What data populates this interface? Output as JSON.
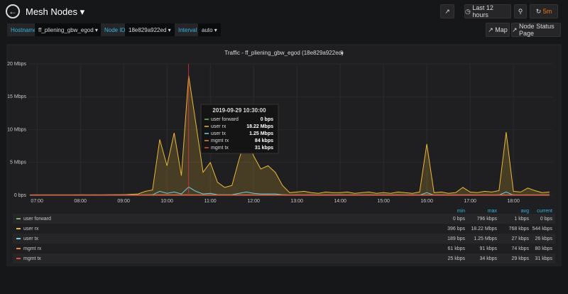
{
  "header": {
    "title": "Mesh Nodes",
    "time_range": "Last 12 hours",
    "refresh": "5m"
  },
  "variables": [
    {
      "label": "Hostname",
      "value": "ff_pliening_gbw_egod"
    },
    {
      "label": "Node ID",
      "value": "18e829a922ed"
    },
    {
      "label": "Interval",
      "value": "auto"
    }
  ],
  "links": [
    "Map",
    "Node Status Page"
  ],
  "chart_data": {
    "type": "line",
    "title": "Traffic - ff_pliening_gbw_egod (18e829a922ed)",
    "x": [
      "06:50",
      "07:00",
      "07:10",
      "07:20",
      "07:30",
      "07:40",
      "07:50",
      "08:00",
      "08:10",
      "08:20",
      "08:30",
      "08:40",
      "08:50",
      "09:00",
      "09:10",
      "09:20",
      "09:30",
      "09:40",
      "09:50",
      "10:00",
      "10:10",
      "10:20",
      "10:30",
      "10:40",
      "10:50",
      "11:00",
      "11:10",
      "11:20",
      "11:30",
      "11:40",
      "11:50",
      "12:00",
      "12:10",
      "12:20",
      "12:30",
      "12:40",
      "12:50",
      "13:00",
      "13:10",
      "13:20",
      "13:30",
      "13:40",
      "13:50",
      "14:00",
      "14:10",
      "14:20",
      "14:30",
      "14:40",
      "14:50",
      "15:00",
      "15:10",
      "15:20",
      "15:30",
      "15:40",
      "15:50",
      "16:00",
      "16:10",
      "16:20",
      "16:30",
      "16:40",
      "16:50",
      "17:00",
      "17:10",
      "17:20",
      "17:30",
      "17:40",
      "17:50",
      "18:00",
      "18:10",
      "18:20",
      "18:30",
      "18:40",
      "18:50"
    ],
    "xlim": [
      "06:48",
      "18:54"
    ],
    "xticks": [
      "07:00",
      "08:00",
      "09:00",
      "10:00",
      "11:00",
      "12:00",
      "13:00",
      "14:00",
      "15:00",
      "16:00",
      "17:00",
      "18:00"
    ],
    "ylim": [
      0,
      20
    ],
    "yticks": [
      {
        "value": 0,
        "label": "0 bps"
      },
      {
        "value": 5,
        "label": "5 Mbps"
      },
      {
        "value": 10,
        "label": "10 Mbps"
      },
      {
        "value": 15,
        "label": "15 Mbps"
      },
      {
        "value": 20,
        "label": "20 Mbps"
      }
    ],
    "grid": true,
    "legend_columns": [
      "min",
      "max",
      "avg",
      "current"
    ],
    "series": [
      {
        "name": "user forward",
        "color": "#7eb26d",
        "values": [
          0,
          0,
          0,
          0,
          0,
          0,
          0,
          0,
          0,
          0,
          0,
          0,
          0,
          0,
          0,
          0,
          0,
          0,
          0,
          0,
          0,
          0,
          0,
          0,
          0,
          0,
          0,
          0,
          0,
          0,
          0,
          0,
          0,
          0,
          0,
          0,
          0,
          0,
          0,
          0,
          0,
          0,
          0,
          0,
          0,
          0,
          0,
          0,
          0,
          0,
          0,
          0,
          0,
          0,
          0,
          0,
          0,
          0,
          0,
          0,
          0,
          0,
          0,
          0,
          0,
          0,
          0,
          0,
          0,
          0,
          0,
          0,
          0
        ],
        "stats": {
          "min": "0 bps",
          "max": "796 kbps",
          "avg": "1 kbps",
          "current": "0 bps"
        }
      },
      {
        "name": "user rx",
        "color": "#eab839",
        "values": [
          0.05,
          0.05,
          0.06,
          0.05,
          0.06,
          0.05,
          0.06,
          0.06,
          0.07,
          0.06,
          0.07,
          0.08,
          0.1,
          0.1,
          0.15,
          0.2,
          0.6,
          0.8,
          8.5,
          4.5,
          9.5,
          3,
          18.22,
          11,
          3.5,
          5,
          2,
          1.2,
          1.5,
          5.5,
          9,
          6,
          4,
          4.5,
          3.5,
          1.5,
          0.4,
          0.5,
          0.6,
          0.4,
          0.3,
          0.5,
          0.4,
          0.4,
          0.5,
          0.3,
          0.4,
          0.5,
          0.3,
          0.4,
          0.3,
          0.5,
          0.4,
          0.3,
          0.5,
          7.8,
          0.4,
          0.5,
          0.3,
          0.4,
          1.2,
          0.5,
          0.4,
          0.6,
          0.5,
          0.7,
          9.6,
          0.6,
          0.5,
          1.1,
          0.7,
          0.4,
          0.5
        ],
        "fill": true,
        "stats": {
          "min": "396 bps",
          "max": "18.22 Mbps",
          "avg": "768 kbps",
          "current": "544 kbps"
        }
      },
      {
        "name": "user tx",
        "color": "#6ed0e0",
        "values": [
          0.02,
          0.02,
          0.02,
          0.02,
          0.02,
          0.02,
          0.02,
          0.02,
          0.02,
          0.02,
          0.02,
          0.02,
          0.02,
          0.02,
          0.03,
          0.04,
          0.06,
          0.08,
          0.6,
          0.3,
          0.5,
          0.2,
          1.25,
          0.6,
          0.2,
          0.3,
          0.1,
          0.08,
          0.1,
          0.3,
          0.5,
          0.3,
          0.2,
          0.2,
          0.2,
          0.1,
          0.04,
          0.03,
          0.03,
          0.03,
          0.03,
          0.03,
          0.03,
          0.03,
          0.03,
          0.03,
          0.03,
          0.03,
          0.03,
          0.03,
          0.03,
          0.03,
          0.03,
          0.03,
          0.03,
          0.4,
          0.03,
          0.03,
          0.03,
          0.03,
          0.06,
          0.03,
          0.03,
          0.03,
          0.03,
          0.04,
          0.5,
          0.03,
          0.03,
          0.05,
          0.03,
          0.03,
          0.03
        ],
        "stats": {
          "min": "189 bps",
          "max": "1.25 Mbps",
          "avg": "27 kbps",
          "current": "26 kbps"
        }
      },
      {
        "name": "mgmt rx",
        "color": "#ef843c",
        "values": [
          0.07,
          0.08,
          0.07,
          0.08,
          0.07,
          0.08,
          0.07,
          0.08,
          0.07,
          0.08,
          0.07,
          0.08,
          0.07,
          0.08,
          0.07,
          0.08,
          0.07,
          0.08,
          0.09,
          0.08,
          0.09,
          0.08,
          0.084,
          0.08,
          0.07,
          0.08,
          0.07,
          0.08,
          0.07,
          0.08,
          0.09,
          0.08,
          0.07,
          0.08,
          0.07,
          0.08,
          0.07,
          0.08,
          0.07,
          0.08,
          0.07,
          0.08,
          0.07,
          0.08,
          0.07,
          0.08,
          0.07,
          0.08,
          0.07,
          0.08,
          0.07,
          0.08,
          0.07,
          0.08,
          0.07,
          0.08,
          0.07,
          0.08,
          0.07,
          0.08,
          0.07,
          0.08,
          0.07,
          0.08,
          0.07,
          0.08,
          0.07,
          0.08,
          0.07,
          0.08,
          0.07,
          0.08,
          0.08
        ],
        "stats": {
          "min": "61 kbps",
          "max": "91 kbps",
          "avg": "74 kbps",
          "current": "80 kbps"
        }
      },
      {
        "name": "mgmt tx",
        "color": "#e24d42",
        "values": [
          0.03,
          0.03,
          0.03,
          0.03,
          0.03,
          0.03,
          0.03,
          0.03,
          0.03,
          0.03,
          0.03,
          0.03,
          0.03,
          0.03,
          0.03,
          0.03,
          0.03,
          0.03,
          0.03,
          0.03,
          0.03,
          0.03,
          0.031,
          0.03,
          0.03,
          0.03,
          0.03,
          0.03,
          0.03,
          0.03,
          0.03,
          0.03,
          0.03,
          0.03,
          0.03,
          0.03,
          0.03,
          0.03,
          0.03,
          0.03,
          0.03,
          0.03,
          0.03,
          0.03,
          0.03,
          0.03,
          0.03,
          0.03,
          0.03,
          0.03,
          0.03,
          0.03,
          0.03,
          0.03,
          0.03,
          0.03,
          0.03,
          0.03,
          0.03,
          0.03,
          0.03,
          0.03,
          0.03,
          0.03,
          0.03,
          0.03,
          0.03,
          0.03,
          0.03,
          0.03,
          0.03,
          0.03,
          0.03
        ],
        "stats": {
          "min": "25 kbps",
          "max": "34 kbps",
          "avg": "29 kbps",
          "current": "31 kbps"
        }
      }
    ],
    "tooltip": {
      "time": "2019-09-29 10:30:00",
      "index": 22,
      "values": [
        "0 bps",
        "18.22 Mbps",
        "1.25 Mbps",
        "84 kbps",
        "31 kbps"
      ]
    }
  }
}
